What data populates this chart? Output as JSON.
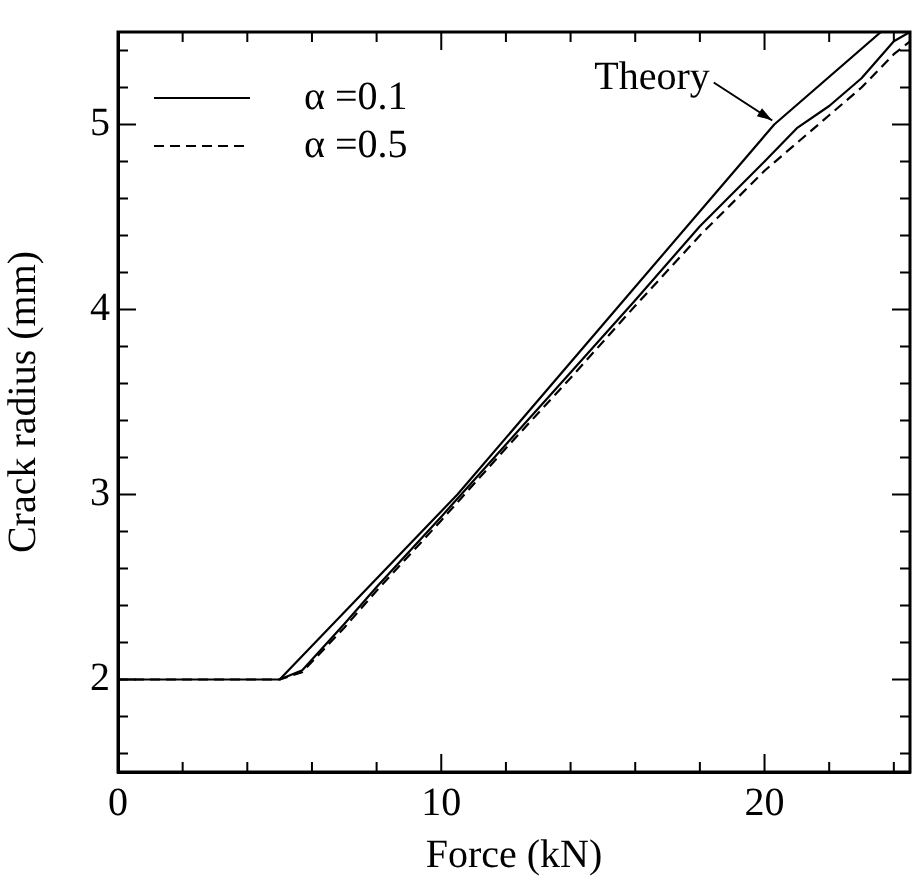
{
  "chart_data": {
    "type": "line",
    "xlabel": "Force (kN)",
    "ylabel": "Crack radius (mm)",
    "xlim": [
      0,
      24.5
    ],
    "ylim": [
      1.5,
      5.5
    ],
    "xticks": [
      0,
      {
        "value": 2,
        "label": null
      },
      {
        "value": 4,
        "label": null
      },
      {
        "value": 6,
        "label": null
      },
      {
        "value": 8,
        "label": null
      },
      10,
      {
        "value": 12,
        "label": null
      },
      {
        "value": 14,
        "label": null
      },
      {
        "value": 16,
        "label": null
      },
      {
        "value": 18,
        "label": null
      },
      20,
      {
        "value": 22,
        "label": null
      },
      {
        "value": 24,
        "label": null
      }
    ],
    "yticks": [
      {
        "value": 1.6,
        "label": null
      },
      {
        "value": 1.8,
        "label": null
      },
      2,
      {
        "value": 2.2,
        "label": null
      },
      {
        "value": 2.4,
        "label": null
      },
      {
        "value": 2.6,
        "label": null
      },
      {
        "value": 2.8,
        "label": null
      },
      3,
      {
        "value": 3.2,
        "label": null
      },
      {
        "value": 3.4,
        "label": null
      },
      {
        "value": 3.6,
        "label": null
      },
      {
        "value": 3.8,
        "label": null
      },
      4,
      {
        "value": 4.2,
        "label": null
      },
      {
        "value": 4.4,
        "label": null
      },
      {
        "value": 4.6,
        "label": null
      },
      {
        "value": 4.8,
        "label": null
      },
      5,
      {
        "value": 5.2,
        "label": null
      },
      {
        "value": 5.4,
        "label": null
      }
    ],
    "grid": false,
    "legend": "top left",
    "marker": "none",
    "series": [
      {
        "name": "α =0.1",
        "color": "#000000",
        "line_style": "solid",
        "x": [
          0,
          5,
          5.7,
          7,
          8,
          10,
          12,
          14,
          16,
          18,
          20,
          21,
          22,
          23,
          24,
          24.5
        ],
        "values": [
          2,
          2,
          2.05,
          2.3,
          2.5,
          2.88,
          3.27,
          3.66,
          4.05,
          4.45,
          4.8,
          4.98,
          5.1,
          5.25,
          5.45,
          5.5
        ]
      },
      {
        "name": "α =0.5",
        "color": "#000000",
        "line_style": "dashed",
        "x": [
          0,
          5,
          5.7,
          7,
          8,
          10,
          12,
          14,
          16,
          18,
          20,
          21,
          22,
          23,
          24,
          24.5
        ],
        "values": [
          2,
          2,
          2.04,
          2.28,
          2.48,
          2.86,
          3.25,
          3.63,
          4.02,
          4.4,
          4.75,
          4.9,
          5.05,
          5.2,
          5.38,
          5.45
        ]
      },
      {
        "color": "#000000",
        "line_style": "solid",
        "x": [
          5,
          10.5,
          15.4,
          20.3,
          23.6
        ],
        "values": [
          2,
          3,
          4,
          5,
          5.5
        ]
      }
    ],
    "annotations": [
      {
        "text": "Theory",
        "x": 20.3,
        "y": 5
      }
    ]
  }
}
